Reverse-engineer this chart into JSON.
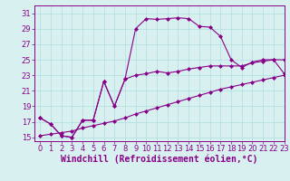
{
  "upper_x": [
    0,
    1,
    2,
    3,
    4,
    5,
    6,
    7,
    8,
    9,
    10,
    11,
    12,
    13,
    14,
    15,
    16,
    17,
    18,
    19,
    20,
    21,
    22,
    23
  ],
  "upper_y": [
    17.5,
    16.7,
    15.2,
    15.0,
    17.2,
    17.2,
    22.2,
    19.0,
    22.5,
    29.0,
    30.3,
    30.2,
    30.3,
    30.4,
    30.3,
    29.3,
    29.2,
    28.0,
    25.0,
    24.0,
    24.7,
    25.0,
    25.0,
    25.0
  ],
  "mid_x": [
    0,
    1,
    2,
    3,
    4,
    5,
    6,
    7,
    8,
    9,
    10,
    11,
    12,
    13,
    14,
    15,
    16,
    17,
    18,
    19,
    20,
    21,
    22,
    23
  ],
  "mid_y": [
    17.5,
    16.7,
    15.2,
    15.0,
    17.2,
    17.2,
    22.2,
    19.0,
    22.5,
    23.0,
    23.2,
    23.5,
    23.3,
    23.5,
    23.8,
    24.0,
    24.2,
    24.2,
    24.2,
    24.2,
    24.6,
    24.8,
    25.0,
    23.2
  ],
  "lower_x": [
    0,
    1,
    2,
    3,
    4,
    5,
    6,
    7,
    8,
    9,
    10,
    11,
    12,
    13,
    14,
    15,
    16,
    17,
    18,
    19,
    20,
    21,
    22,
    23
  ],
  "lower_y": [
    15.2,
    15.4,
    15.6,
    15.8,
    16.2,
    16.5,
    16.8,
    17.1,
    17.5,
    18.0,
    18.4,
    18.8,
    19.2,
    19.6,
    20.0,
    20.4,
    20.8,
    21.2,
    21.5,
    21.8,
    22.1,
    22.4,
    22.7,
    23.0
  ],
  "line_color": "#880088",
  "bg_color": "#d8f0f0",
  "grid_color": "#b0dede",
  "xlabel": "Windchill (Refroidissement éolien,°C)",
  "ylim": [
    14.5,
    32
  ],
  "xlim": [
    -0.5,
    23
  ],
  "yticks": [
    15,
    17,
    19,
    21,
    23,
    25,
    27,
    29,
    31
  ],
  "xticks": [
    0,
    1,
    2,
    3,
    4,
    5,
    6,
    7,
    8,
    9,
    10,
    11,
    12,
    13,
    14,
    15,
    16,
    17,
    18,
    19,
    20,
    21,
    22,
    23
  ],
  "axis_fontsize": 6.5,
  "tick_fontsize": 6.0,
  "xlabel_fontsize": 7.0
}
